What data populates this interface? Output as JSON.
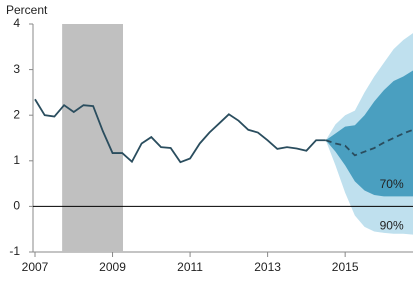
{
  "chart_data": {
    "type": "fan",
    "y_axis_label": "Percent",
    "xlim": [
      2007,
      2016.75
    ],
    "xticks": [
      2007,
      2009,
      2011,
      2013,
      2015
    ],
    "ylim": [
      -1,
      4
    ],
    "yticks": [
      -1,
      0,
      1,
      2,
      3,
      4
    ],
    "shaded_regions": [
      {
        "start": 2007.7,
        "end": 2009.27,
        "color": "#c0c0c0"
      }
    ],
    "bands": [
      {
        "label": "90%",
        "color": "#bfe0ee",
        "x": [
          2014.5,
          2014.75,
          2015,
          2015.25,
          2015.5,
          2015.75,
          2016,
          2016.25,
          2016.5,
          2016.75
        ],
        "lower": [
          1.45,
          0.9,
          0.3,
          -0.2,
          -0.45,
          -0.55,
          -0.58,
          -0.6,
          -0.6,
          -0.62
        ],
        "upper": [
          1.45,
          1.8,
          2.0,
          2.1,
          2.5,
          2.85,
          3.15,
          3.45,
          3.65,
          3.8
        ]
      },
      {
        "label": "70%",
        "color": "#4a9fc0",
        "x": [
          2014.5,
          2014.75,
          2015,
          2015.25,
          2015.5,
          2015.75,
          2016,
          2016.25,
          2016.5,
          2016.75
        ],
        "lower": [
          1.45,
          1.2,
          0.9,
          0.55,
          0.35,
          0.25,
          0.22,
          0.22,
          0.22,
          0.22
        ],
        "upper": [
          1.45,
          1.6,
          1.75,
          1.78,
          2.0,
          2.3,
          2.55,
          2.75,
          2.85,
          2.98
        ]
      }
    ],
    "series": [
      {
        "color": "#2a4d5e",
        "style": "solid",
        "x": [
          2007,
          2007.25,
          2007.5,
          2007.75,
          2008,
          2008.25,
          2008.5,
          2008.75,
          2009,
          2009.25,
          2009.5,
          2009.75,
          2010,
          2010.25,
          2010.5,
          2010.75,
          2011,
          2011.25,
          2011.5,
          2011.75,
          2012,
          2012.25,
          2012.5,
          2012.75,
          2013,
          2013.25,
          2013.5,
          2013.75,
          2014,
          2014.25,
          2014.5
        ],
        "values": [
          2.35,
          2.0,
          1.97,
          2.22,
          2.07,
          2.22,
          2.2,
          1.65,
          1.17,
          1.17,
          0.98,
          1.38,
          1.52,
          1.3,
          1.28,
          0.97,
          1.05,
          1.38,
          1.62,
          1.82,
          2.02,
          1.88,
          1.68,
          1.62,
          1.45,
          1.26,
          1.3,
          1.27,
          1.22,
          1.45,
          1.45
        ]
      },
      {
        "color": "#2a4d5e",
        "style": "dashed",
        "x": [
          2014.5,
          2014.75,
          2015,
          2015.25,
          2015.5,
          2015.75,
          2016,
          2016.25,
          2016.5,
          2016.75
        ],
        "values": [
          1.45,
          1.38,
          1.33,
          1.12,
          1.2,
          1.28,
          1.4,
          1.5,
          1.6,
          1.68
        ]
      }
    ]
  }
}
